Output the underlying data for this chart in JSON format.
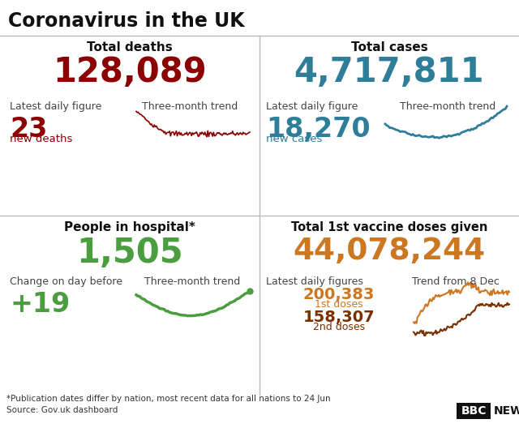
{
  "title": "Coronavirus in the UK",
  "title_fontsize": 17,
  "background_color": "#ffffff",
  "divider_color": "#bbbbbb",
  "top_left": {
    "section_title": "Total deaths",
    "big_number": "128,089",
    "big_number_color": "#8b0000",
    "label1": "Latest daily figure",
    "label2": "Three-month trend",
    "daily_value": "23",
    "daily_label": "new deaths",
    "daily_color": "#8b0000"
  },
  "top_right": {
    "section_title": "Total cases",
    "big_number": "4,717,811",
    "big_number_color": "#2e7d99",
    "label1": "Latest daily figure",
    "label2": "Three-month trend",
    "daily_value": "18,270",
    "daily_label": "new cases",
    "daily_color": "#2e7d99"
  },
  "bottom_left": {
    "section_title": "People in hospital*",
    "big_number": "1,505",
    "big_number_color": "#4a9e3f",
    "label1": "Change on day before",
    "label2": "Three-month trend",
    "daily_value": "+19",
    "daily_color": "#4a9e3f"
  },
  "bottom_right": {
    "section_title": "Total 1st vaccine doses given",
    "big_number": "44,078,244",
    "big_number_color": "#cc7722",
    "label1": "Latest daily figures",
    "label2": "Trend from 8 Dec",
    "value1": "200,383",
    "label_val1": "1st doses",
    "value1_color": "#cc7722",
    "value2": "158,307",
    "label_val2": "2nd doses",
    "value2_color": "#7b3000"
  },
  "footnote1": "*Publication dates differ by nation, most recent data for all nations to 24 Jun",
  "footnote2": "Source: Gov.uk dashboard"
}
